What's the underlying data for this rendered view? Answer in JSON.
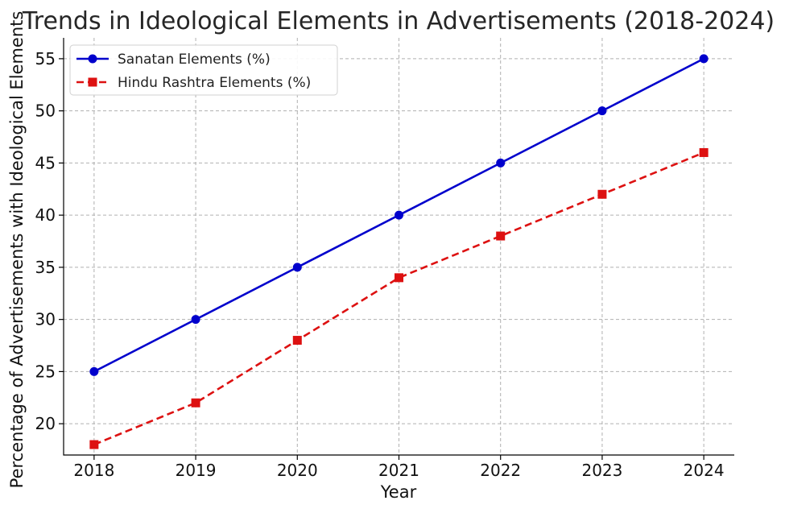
{
  "chart_data": {
    "type": "line",
    "title": "Trends in Ideological Elements in Advertisements (2018-2024)",
    "xlabel": "Year",
    "ylabel": "Percentage of Advertisements with Ideological Elements",
    "categories": [
      "2018",
      "2019",
      "2020",
      "2021",
      "2022",
      "2023",
      "2024"
    ],
    "x": [
      2018,
      2019,
      2020,
      2021,
      2022,
      2023,
      2024
    ],
    "ylim": [
      17,
      57
    ],
    "yticks": [
      20,
      25,
      30,
      35,
      40,
      45,
      50,
      55
    ],
    "grid": true,
    "legend_position": "top-left",
    "series": [
      {
        "name": "Sanatan Elements (%)",
        "values": [
          25,
          30,
          35,
          40,
          45,
          50,
          55
        ],
        "color": "#0000cc",
        "line_style": "solid",
        "marker": "circle"
      },
      {
        "name": "Hindu Rashtra Elements (%)",
        "values": [
          18,
          22,
          28,
          34,
          38,
          42,
          46
        ],
        "color": "#dd1111",
        "line_style": "dashed",
        "marker": "square"
      }
    ]
  }
}
